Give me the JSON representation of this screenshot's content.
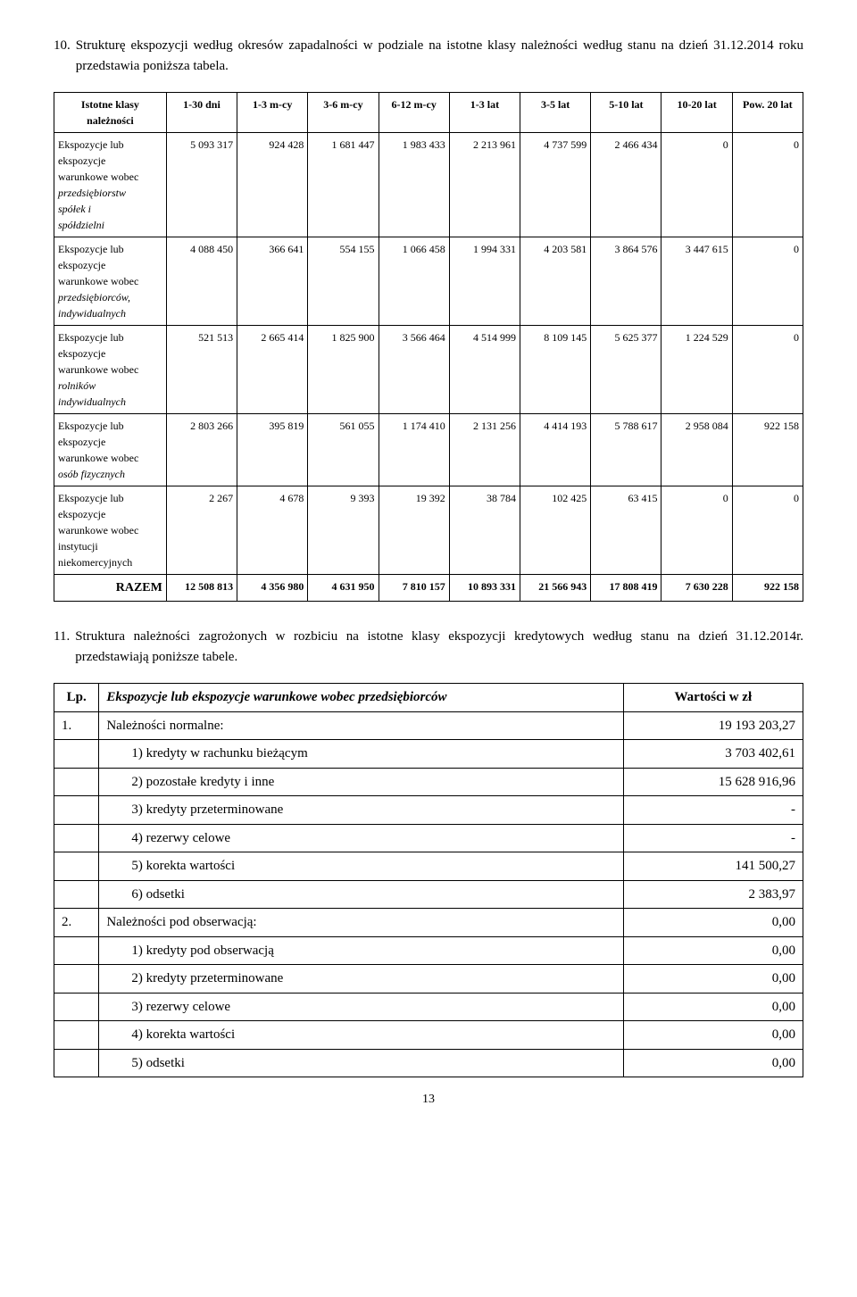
{
  "para10": {
    "num": "10.",
    "text": "Strukturę ekspozycji według okresów zapadalności w podziale na istotne klasy należności według stanu na dzień 31.12.2014 roku przedstawia poniższa tabela."
  },
  "bigtable": {
    "headers": [
      "Istotne klasy należności",
      "1-30 dni",
      "1-3 m-cy",
      "3-6 m-cy",
      "6-12 m-cy",
      "1-3 lat",
      "3-5 lat",
      "5-10 lat",
      "10-20 lat",
      "Pow. 20 lat"
    ],
    "rows": [
      {
        "label_plain": [
          "Ekspozycje lub",
          "ekspozycje",
          "warunkowe wobec"
        ],
        "label_italic": [
          "przedsiębiorstw",
          "spółek i",
          "spółdzielni"
        ],
        "vals": [
          "5 093 317",
          "924 428",
          "1 681 447",
          "1 983 433",
          "2 213 961",
          "4 737 599",
          "2 466 434",
          "0",
          "0"
        ]
      },
      {
        "label_plain": [
          "Ekspozycje lub",
          "ekspozycje",
          "warunkowe wobec"
        ],
        "label_italic": [
          "przedsiębiorców,",
          "indywidualnych"
        ],
        "vals": [
          "4 088 450",
          "366 641",
          "554 155",
          "1 066 458",
          "1 994 331",
          "4 203 581",
          "3 864 576",
          "3 447 615",
          "0"
        ]
      },
      {
        "label_plain": [
          "Ekspozycje lub",
          "ekspozycje",
          "warunkowe wobec"
        ],
        "label_italic": [
          "rolników",
          "indywidualnych"
        ],
        "vals": [
          "521 513",
          "2 665 414",
          "1 825 900",
          "3 566 464",
          "4 514 999",
          "8 109 145",
          "5 625 377",
          "1 224 529",
          "0"
        ]
      },
      {
        "label_plain": [
          "Ekspozycje lub",
          "ekspozycje",
          "warunkowe wobec"
        ],
        "label_italic": [
          "osób fizycznych"
        ],
        "vals": [
          "2 803 266",
          "395 819",
          "561 055",
          "1 174 410",
          "2 131 256",
          "4 414 193",
          "5 788 617",
          "2 958 084",
          "922 158"
        ]
      },
      {
        "label_plain": [
          "Ekspozycje lub",
          "ekspozycje",
          "warunkowe wobec",
          "instytucji",
          "niekomercyjnych"
        ],
        "label_italic": [],
        "vals": [
          "2 267",
          "4 678",
          "9 393",
          "19 392",
          "38 784",
          "102 425",
          "63 415",
          "0",
          "0"
        ]
      }
    ],
    "total_label": "RAZEM",
    "total_vals": [
      "12 508 813",
      "4 356 980",
      "4 631 950",
      "7 810 157",
      "10 893 331",
      "21 566 943",
      "17 808 419",
      "7 630 228",
      "922 158"
    ]
  },
  "para11": {
    "num": "11.",
    "text": "Struktura należności zagrożonych w rozbiciu na istotne klasy ekspozycji kredytowych według stanu na dzień 31.12.2014r. przedstawiają poniższe tabele."
  },
  "smalltable": {
    "headers": {
      "lp": "Lp.",
      "desc": "Ekspozycje lub ekspozycje warunkowe wobec przedsiębiorców",
      "val": "Wartości w zł"
    },
    "rows": [
      {
        "lp": "1.",
        "desc": "Należności normalne:",
        "val": "19 193 203,27",
        "sub": false
      },
      {
        "lp": "",
        "desc": "1) kredyty w rachunku bieżącym",
        "val": "3 703 402,61",
        "sub": true
      },
      {
        "lp": "",
        "desc": "2) pozostałe kredyty i inne",
        "val": "15 628 916,96",
        "sub": true
      },
      {
        "lp": "",
        "desc": "3) kredyty przeterminowane",
        "val": "-",
        "sub": true
      },
      {
        "lp": "",
        "desc": "4) rezerwy celowe",
        "val": "-",
        "sub": true
      },
      {
        "lp": "",
        "desc": "5) korekta wartości",
        "val": "141 500,27",
        "sub": true
      },
      {
        "lp": "",
        "desc": "6) odsetki",
        "val": "2 383,97",
        "sub": true
      },
      {
        "lp": "2.",
        "desc": "Należności pod obserwacją:",
        "val": "0,00",
        "sub": false
      },
      {
        "lp": "",
        "desc": "1) kredyty pod obserwacją",
        "val": "0,00",
        "sub": true
      },
      {
        "lp": "",
        "desc": "2) kredyty przeterminowane",
        "val": "0,00",
        "sub": true
      },
      {
        "lp": "",
        "desc": "3) rezerwy celowe",
        "val": "0,00",
        "sub": true
      },
      {
        "lp": "",
        "desc": "4) korekta wartości",
        "val": "0,00",
        "sub": true
      },
      {
        "lp": "",
        "desc": "5) odsetki",
        "val": "0,00",
        "sub": true
      }
    ]
  },
  "page_number": "13"
}
